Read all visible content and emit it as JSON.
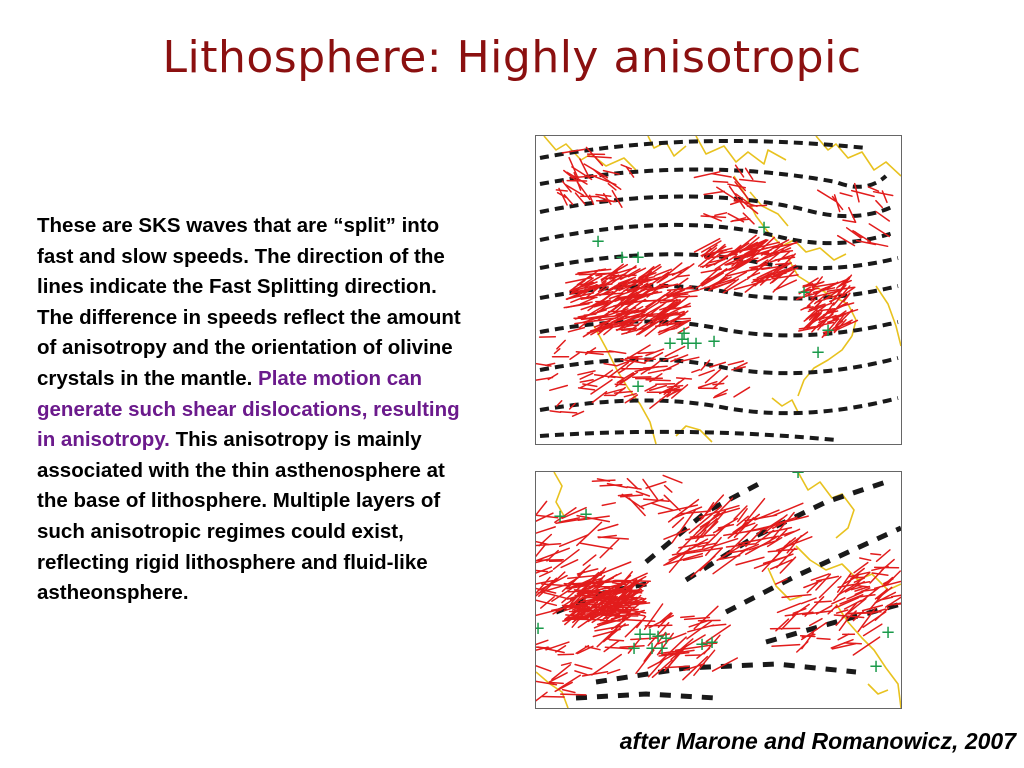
{
  "title": "Lithosphere:  Highly anisotropic",
  "body": {
    "part1": "These are SKS waves that are “split” into fast and slow speeds. The direction of the lines indicate the Fast Splitting direction.  The difference in speeds reflect the amount of anisotropy and the orientation of olivine crystals in the mantle.  ",
    "highlight": "Plate motion can generate such shear dislocations, resulting in anisotropy.",
    "part2": "  This anisotropy is mainly associated with the thin asthenosphere at the base of lithosphere.  Multiple layers of such anisotropic regimes could exist, reflecting rigid lithosphere and fluid-like astheonsphere."
  },
  "citation": "after Marone and Romanowicz, 2007",
  "colors": {
    "title": "#8b1010",
    "highlight": "#6b1a8c",
    "coastline": "#e8c21f",
    "splitting_measurements": "#e21c1c",
    "model_fast_axes": "#1a1a1a",
    "stations": "#1a9a4a"
  },
  "figures": {
    "top_map": {
      "content": "SKS fast splitting directions over North America",
      "station_marker": "+"
    },
    "bottom_map": {
      "content": "SKS fast splitting directions, regional detail",
      "station_marker": "+"
    }
  }
}
